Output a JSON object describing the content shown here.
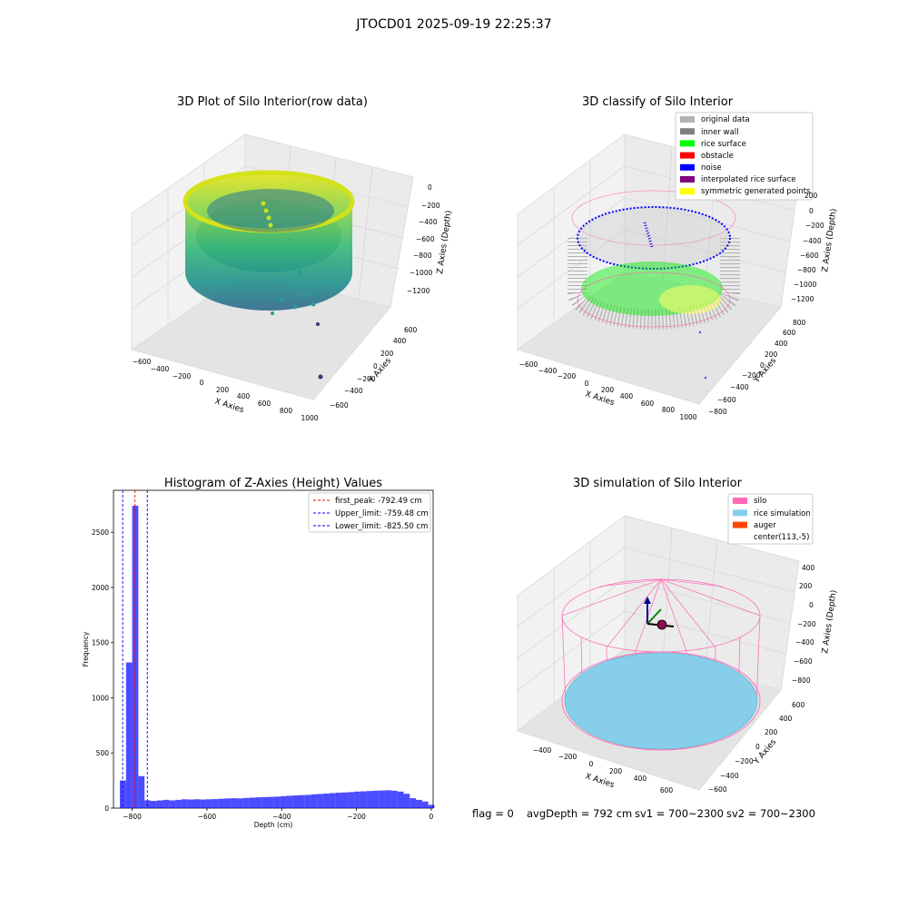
{
  "figure": {
    "title": "JTOCD01 2025-09-19 22:25:37",
    "footer": {
      "flag": "flag = 0",
      "avg_depth": "avgDepth = 792 cm",
      "sv1": "sv1 = 700~2300",
      "sv2": "sv2 = 700~2300"
    }
  },
  "chart_data": [
    {
      "type": "scatter",
      "title": "3D Plot of Silo Interior(row data)",
      "xlabel": "X Axies",
      "ylabel": "Y Axies",
      "zlabel": "Z Axies (Depth)",
      "x_ticks": [
        "−600",
        "−400",
        "−200",
        "0",
        "200",
        "400",
        "600",
        "800",
        "1000"
      ],
      "y_ticks": [
        "−600",
        "−400",
        "−200",
        "0",
        "200",
        "400",
        "600"
      ],
      "z_ticks": [
        "0",
        "−200",
        "−400",
        "−600",
        "−800",
        "−1000",
        "−1200"
      ],
      "colormap": "viridis"
    },
    {
      "type": "scatter",
      "title": "3D classify of Silo Interior",
      "xlabel": "X Axies",
      "ylabel": "Y Axies",
      "zlabel": "Z Axies (Depth)",
      "x_ticks": [
        "−600",
        "−400",
        "−200",
        "0",
        "200",
        "400",
        "600",
        "800",
        "1000"
      ],
      "y_ticks": [
        "−800",
        "−600",
        "−400",
        "−200",
        "0",
        "200",
        "400",
        "600",
        "800"
      ],
      "z_ticks": [
        "200",
        "0",
        "−200",
        "−400",
        "−600",
        "−800",
        "−1000",
        "−1200"
      ],
      "legend_position": "upper-right",
      "legend": [
        {
          "label": "original data",
          "color": "#b3b3b3"
        },
        {
          "label": "inner wall",
          "color": "#808080"
        },
        {
          "label": "rice surface",
          "color": "#00ff00"
        },
        {
          "label": "obstacle",
          "color": "#ff0000"
        },
        {
          "label": "noise",
          "color": "#0000ff"
        },
        {
          "label": "interpolated rice surface",
          "color": "#800080"
        },
        {
          "label": "symmetric generated points",
          "color": "#ffff00"
        }
      ]
    },
    {
      "type": "bar",
      "title": "Histogram of Z-Axies (Height) Values",
      "xlabel": "Depth (cm)",
      "ylabel": "Frequency",
      "xlim": [
        -850,
        5
      ],
      "ylim": [
        0,
        2880
      ],
      "x_ticks": [
        -800,
        -600,
        -400,
        -200,
        0
      ],
      "y_ticks": [
        0,
        500,
        1000,
        1500,
        2000,
        2500
      ],
      "bar_color": "#0000ff",
      "bin_width": 16.5,
      "bins_start": [
        -833,
        -816.5,
        -800,
        -783.5,
        -767,
        -750.5,
        -734,
        -717.5,
        -701,
        -684.5,
        -668,
        -651.5,
        -635,
        -618.5,
        -602,
        -585.5,
        -569,
        -552.5,
        -536,
        -519.5,
        -503,
        -486.5,
        -470,
        -453.5,
        -437,
        -420.5,
        -404,
        -387.5,
        -371,
        -354.5,
        -338,
        -321.5,
        -305,
        -288.5,
        -272,
        -255.5,
        -239,
        -222.5,
        -206,
        -189.5,
        -173,
        -156.5,
        -140,
        -123.5,
        -107,
        -90.5,
        -74,
        -57.5,
        -41,
        -24.5,
        -8
      ],
      "values": [
        250,
        1320,
        2740,
        290,
        70,
        65,
        70,
        75,
        70,
        75,
        80,
        78,
        80,
        78,
        80,
        82,
        85,
        88,
        90,
        88,
        92,
        95,
        98,
        100,
        102,
        104,
        108,
        112,
        115,
        118,
        120,
        125,
        128,
        132,
        136,
        140,
        142,
        145,
        150,
        152,
        155,
        158,
        160,
        162,
        158,
        150,
        130,
        90,
        75,
        60,
        30
      ],
      "lines": [
        {
          "label": "first_peak: -792.49 cm",
          "x": -792.49,
          "color": "#ff0000"
        },
        {
          "label": "Upper_limit: -759.48 cm",
          "x": -759.48,
          "color": "#0000ff"
        },
        {
          "label": "Lower_limit: -825.50 cm",
          "x": -825.5,
          "color": "#0000ff"
        }
      ],
      "legend_position": "upper-right"
    },
    {
      "type": "scatter",
      "title": "3D simulation of Silo Interior",
      "xlabel": "X Axies",
      "ylabel": "Y Axies",
      "zlabel": "Z Axies (Depth)",
      "x_ticks": [
        "−400",
        "−200",
        "0",
        "200",
        "400",
        "600"
      ],
      "y_ticks": [
        "−600",
        "−400",
        "−200",
        "0",
        "200",
        "400",
        "600"
      ],
      "z_ticks": [
        "400",
        "200",
        "0",
        "−200",
        "−400",
        "−600",
        "−800"
      ],
      "legend_position": "upper-right",
      "legend": [
        {
          "label": "silo",
          "color": "#ff69b4"
        },
        {
          "label": "rice simulation",
          "color": "#87ceeb"
        },
        {
          "label": "auger",
          "color": "#ff4500"
        },
        {
          "label": "center(113,-5)",
          "color": ""
        }
      ]
    }
  ]
}
